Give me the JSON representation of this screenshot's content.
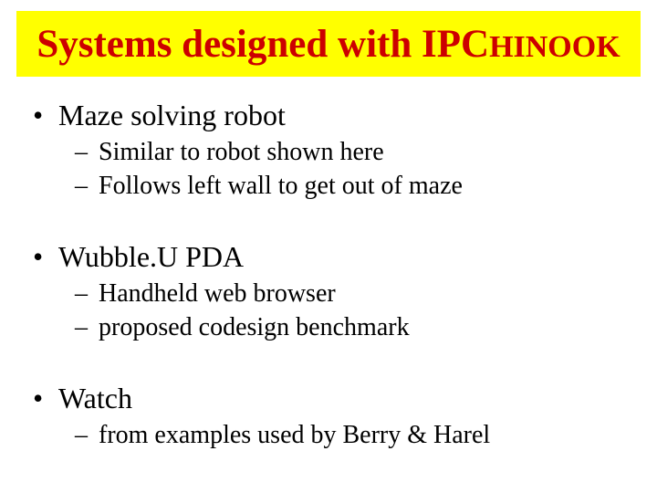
{
  "title": {
    "prefix": "Systems designed with IPC",
    "suffix": "HINOOK"
  },
  "colors": {
    "title_bg": "#ffff00",
    "title_fg": "#cc0000",
    "body_fg": "#000000",
    "slide_bg": "#ffffff"
  },
  "typography": {
    "title_fontsize_pt": 32,
    "title_suffix_fontsize_pt": 26,
    "l1_fontsize_pt": 24,
    "l2_fontsize_pt": 21,
    "font_family": "Times New Roman"
  },
  "bullets": {
    "l1_marker": "•",
    "l2_marker": "–"
  },
  "items": [
    {
      "text": "Maze solving robot",
      "sub": [
        "Similar to robot shown here",
        "Follows left wall to get out of maze"
      ]
    },
    {
      "text": "Wubble.U PDA",
      "sub": [
        "Handheld web browser",
        "proposed codesign benchmark"
      ]
    },
    {
      "text": "Watch",
      "sub": [
        "from examples used by Berry & Harel"
      ]
    }
  ]
}
